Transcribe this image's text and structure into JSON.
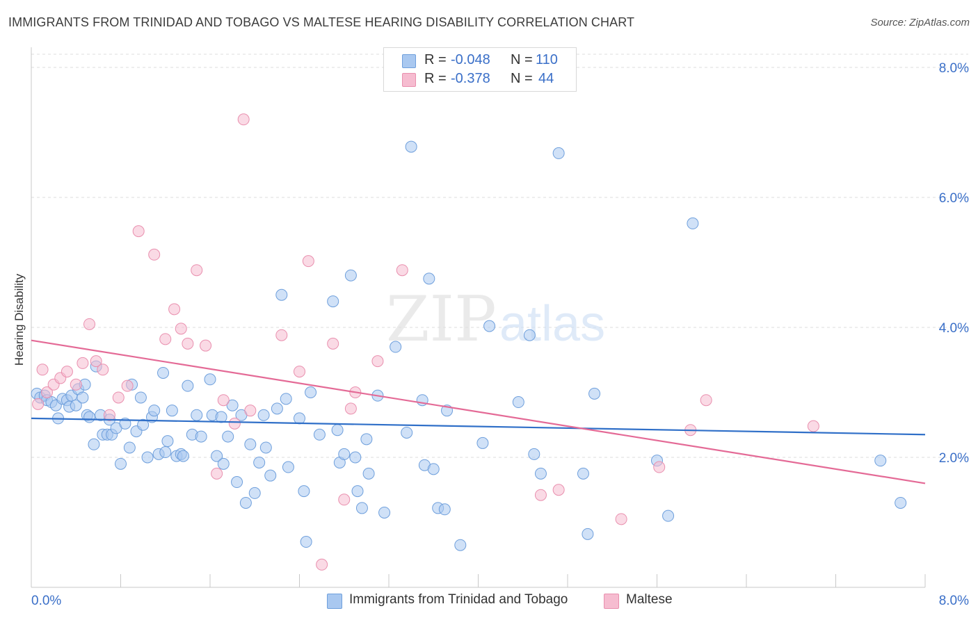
{
  "title": "IMMIGRANTS FROM TRINIDAD AND TOBAGO VS MALTESE HEARING DISABILITY CORRELATION CHART",
  "source": "Source: ZipAtlas.com",
  "watermark": {
    "part1": "ZIP",
    "part2": "atlas"
  },
  "legend": {
    "rows": [
      {
        "r_label": "R =",
        "r_value": "-0.048",
        "n_label": "N =",
        "n_value": "110"
      },
      {
        "r_label": "R =",
        "r_value": "-0.378",
        "n_label": "N =",
        "n_value": "44"
      }
    ]
  },
  "colors": {
    "blue_fill": "#a9c8f0",
    "blue_stroke": "#6e9fdc",
    "blue_line": "#2f6fc8",
    "pink_fill": "#f6bcd0",
    "pink_stroke": "#e98fae",
    "pink_line": "#e46a96",
    "grid": "#dedede",
    "tick_label": "#3a6fc8"
  },
  "chart_data": {
    "type": "scatter",
    "title": "IMMIGRANTS FROM TRINIDAD AND TOBAGO VS MALTESE HEARING DISABILITY CORRELATION CHART",
    "xlabel": "",
    "ylabel": "Hearing Disability",
    "xlim": [
      0,
      8
    ],
    "ylim": [
      0,
      8
    ],
    "x_tick_labels": [
      "0.0%",
      "8.0%"
    ],
    "y_tick_labels": [
      "2.0%",
      "4.0%",
      "6.0%",
      "8.0%"
    ],
    "y_tick_values": [
      2,
      4,
      6,
      8
    ],
    "grid": true,
    "legend_position": "top-center",
    "series": [
      {
        "name": "Immigrants from Trinidad and Tobago",
        "color": "#a9c8f0",
        "trend": {
          "x": [
            0,
            8
          ],
          "y": [
            2.6,
            2.35
          ]
        },
        "points": [
          [
            0.05,
            2.98
          ],
          [
            0.08,
            2.92
          ],
          [
            0.12,
            2.95
          ],
          [
            0.14,
            2.88
          ],
          [
            0.18,
            2.85
          ],
          [
            0.22,
            2.8
          ],
          [
            0.24,
            2.6
          ],
          [
            0.28,
            2.9
          ],
          [
            0.32,
            2.88
          ],
          [
            0.34,
            2.78
          ],
          [
            0.36,
            2.95
          ],
          [
            0.4,
            2.8
          ],
          [
            0.42,
            3.05
          ],
          [
            0.46,
            2.92
          ],
          [
            0.48,
            3.12
          ],
          [
            0.5,
            2.65
          ],
          [
            0.52,
            2.62
          ],
          [
            0.56,
            2.2
          ],
          [
            0.58,
            3.4
          ],
          [
            0.62,
            2.65
          ],
          [
            0.64,
            2.35
          ],
          [
            0.68,
            2.35
          ],
          [
            0.7,
            2.58
          ],
          [
            0.72,
            2.35
          ],
          [
            0.76,
            2.45
          ],
          [
            0.8,
            1.9
          ],
          [
            0.84,
            2.52
          ],
          [
            0.88,
            2.15
          ],
          [
            0.9,
            3.12
          ],
          [
            0.94,
            2.4
          ],
          [
            0.98,
            2.92
          ],
          [
            1.0,
            2.5
          ],
          [
            1.04,
            2.0
          ],
          [
            1.08,
            2.62
          ],
          [
            1.1,
            2.72
          ],
          [
            1.14,
            2.05
          ],
          [
            1.18,
            3.3
          ],
          [
            1.2,
            2.08
          ],
          [
            1.22,
            2.25
          ],
          [
            1.26,
            2.72
          ],
          [
            1.3,
            2.02
          ],
          [
            1.34,
            2.05
          ],
          [
            1.36,
            2.02
          ],
          [
            1.4,
            3.1
          ],
          [
            1.44,
            2.35
          ],
          [
            1.48,
            2.65
          ],
          [
            1.52,
            2.32
          ],
          [
            1.6,
            3.2
          ],
          [
            1.62,
            2.65
          ],
          [
            1.66,
            2.02
          ],
          [
            1.7,
            2.62
          ],
          [
            1.72,
            1.9
          ],
          [
            1.76,
            2.32
          ],
          [
            1.8,
            2.8
          ],
          [
            1.84,
            1.62
          ],
          [
            1.88,
            2.65
          ],
          [
            1.92,
            1.3
          ],
          [
            1.96,
            2.2
          ],
          [
            2.0,
            1.45
          ],
          [
            2.04,
            1.92
          ],
          [
            2.08,
            2.65
          ],
          [
            2.1,
            2.15
          ],
          [
            2.14,
            1.72
          ],
          [
            2.2,
            2.75
          ],
          [
            2.24,
            4.5
          ],
          [
            2.28,
            2.9
          ],
          [
            2.3,
            1.85
          ],
          [
            2.4,
            2.6
          ],
          [
            2.44,
            1.48
          ],
          [
            2.46,
            0.7
          ],
          [
            2.5,
            3.0
          ],
          [
            2.58,
            2.35
          ],
          [
            2.7,
            4.4
          ],
          [
            2.74,
            2.42
          ],
          [
            2.76,
            1.92
          ],
          [
            2.8,
            2.05
          ],
          [
            2.86,
            4.8
          ],
          [
            2.9,
            2.0
          ],
          [
            2.92,
            1.48
          ],
          [
            2.96,
            1.22
          ],
          [
            3.0,
            2.28
          ],
          [
            3.02,
            1.75
          ],
          [
            3.1,
            2.95
          ],
          [
            3.16,
            1.15
          ],
          [
            3.26,
            3.7
          ],
          [
            3.36,
            2.38
          ],
          [
            3.4,
            6.78
          ],
          [
            3.5,
            2.88
          ],
          [
            3.52,
            1.88
          ],
          [
            3.56,
            4.75
          ],
          [
            3.6,
            1.82
          ],
          [
            3.64,
            1.22
          ],
          [
            3.7,
            1.2
          ],
          [
            3.72,
            2.72
          ],
          [
            3.84,
            0.65
          ],
          [
            4.04,
            2.22
          ],
          [
            4.1,
            4.02
          ],
          [
            4.36,
            2.85
          ],
          [
            4.46,
            3.88
          ],
          [
            4.5,
            2.05
          ],
          [
            4.56,
            1.75
          ],
          [
            4.72,
            6.68
          ],
          [
            4.94,
            1.75
          ],
          [
            4.98,
            0.82
          ],
          [
            5.04,
            2.98
          ],
          [
            5.6,
            1.95
          ],
          [
            5.7,
            1.1
          ],
          [
            5.92,
            5.6
          ],
          [
            7.6,
            1.95
          ],
          [
            7.78,
            1.3
          ]
        ]
      },
      {
        "name": "Maltese",
        "color": "#f6bcd0",
        "trend": {
          "x": [
            0,
            8
          ],
          "y": [
            3.8,
            1.6
          ]
        },
        "points": [
          [
            0.06,
            2.82
          ],
          [
            0.1,
            3.35
          ],
          [
            0.14,
            3.0
          ],
          [
            0.2,
            3.12
          ],
          [
            0.26,
            3.22
          ],
          [
            0.32,
            3.32
          ],
          [
            0.4,
            3.12
          ],
          [
            0.46,
            3.45
          ],
          [
            0.52,
            4.05
          ],
          [
            0.58,
            3.48
          ],
          [
            0.64,
            3.35
          ],
          [
            0.7,
            2.65
          ],
          [
            0.78,
            2.92
          ],
          [
            0.86,
            3.1
          ],
          [
            0.96,
            5.48
          ],
          [
            1.1,
            5.12
          ],
          [
            1.2,
            3.82
          ],
          [
            1.28,
            4.28
          ],
          [
            1.34,
            3.98
          ],
          [
            1.4,
            3.75
          ],
          [
            1.48,
            4.88
          ],
          [
            1.56,
            3.72
          ],
          [
            1.66,
            1.75
          ],
          [
            1.72,
            2.88
          ],
          [
            1.82,
            2.52
          ],
          [
            1.9,
            7.2
          ],
          [
            1.96,
            2.72
          ],
          [
            2.24,
            3.88
          ],
          [
            2.4,
            3.32
          ],
          [
            2.48,
            5.02
          ],
          [
            2.6,
            0.35
          ],
          [
            2.7,
            3.75
          ],
          [
            2.8,
            1.35
          ],
          [
            2.86,
            2.75
          ],
          [
            2.9,
            3.0
          ],
          [
            3.1,
            3.48
          ],
          [
            3.32,
            4.88
          ],
          [
            4.56,
            1.42
          ],
          [
            4.72,
            1.5
          ],
          [
            5.28,
            1.05
          ],
          [
            5.62,
            1.85
          ],
          [
            5.9,
            2.42
          ],
          [
            6.04,
            2.88
          ],
          [
            7.0,
            2.48
          ]
        ]
      }
    ]
  },
  "bottom_legend": {
    "items": [
      {
        "label": "Immigrants from Trinidad and Tobago"
      },
      {
        "label": "Maltese"
      }
    ]
  }
}
